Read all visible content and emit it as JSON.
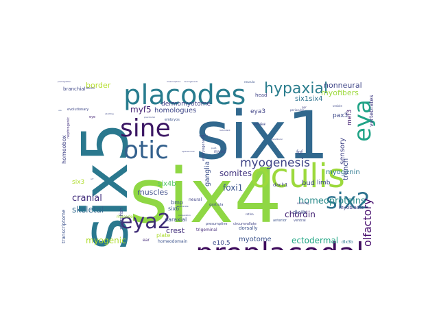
{
  "word_cloud": {
    "words": [
      {
        "text": "six4",
        "weight": 100,
        "color": "#8fd744",
        "rotated": false
      },
      {
        "text": "six1",
        "weight": 85,
        "color": "#31688e",
        "rotated": false
      },
      {
        "text": "six5",
        "weight": 80,
        "color": "#2a788e",
        "rotated": true
      },
      {
        "text": "oculis",
        "weight": 45,
        "color": "#9cd93c",
        "rotated": false
      },
      {
        "text": "preplacodal",
        "weight": 42,
        "color": "#3e0b5c",
        "rotated": false
      },
      {
        "text": "placodes",
        "weight": 40,
        "color": "#287c8e",
        "rotated": false
      },
      {
        "text": "sine",
        "weight": 35,
        "color": "#3c1764",
        "rotated": false
      },
      {
        "text": "otic",
        "weight": 33,
        "color": "#34618d",
        "rotated": false
      },
      {
        "text": "eya",
        "weight": 34,
        "color": "#20a386",
        "rotated": true
      },
      {
        "text": "six2",
        "weight": 30,
        "color": "#2c718e",
        "rotated": false
      },
      {
        "text": "eya2",
        "weight": 28,
        "color": "#3f2d77",
        "rotated": false
      },
      {
        "text": "hypaxial",
        "weight": 22,
        "color": "#2c7e8e",
        "rotated": false
      },
      {
        "text": "myogenesis",
        "weight": 18,
        "color": "#404587",
        "rotated": false
      },
      {
        "text": "olfactory",
        "weight": 16,
        "color": "#44096b",
        "rotated": true
      },
      {
        "text": "homeoproteins",
        "weight": 13,
        "color": "#2a8b8b",
        "rotated": false
      },
      {
        "text": "chordin",
        "weight": 12,
        "color": "#3c1a6e",
        "rotated": false
      },
      {
        "text": "cranial",
        "weight": 13,
        "color": "#3f2a7a",
        "rotated": false
      },
      {
        "text": "somites",
        "weight": 12,
        "color": "#453781",
        "rotated": false
      },
      {
        "text": "skeletal",
        "weight": 12,
        "color": "#30698e",
        "rotated": false
      },
      {
        "text": "myogenic",
        "weight": 12,
        "color": "#b1dd2f",
        "rotated": false
      },
      {
        "text": "ectodermal",
        "weight": 12,
        "color": "#22a785",
        "rotated": false
      },
      {
        "text": "myf5",
        "weight": 12,
        "color": "#482374",
        "rotated": false
      },
      {
        "text": "border",
        "weight": 11,
        "color": "#b5de2b",
        "rotated": false
      },
      {
        "text": "nonneural",
        "weight": 11,
        "color": "#404688",
        "rotated": false
      },
      {
        "text": "myofibers",
        "weight": 11,
        "color": "#9dd93b",
        "rotated": false
      },
      {
        "text": "foxi1",
        "weight": 11,
        "color": "#3a548c",
        "rotated": false
      },
      {
        "text": "crest",
        "weight": 11,
        "color": "#46327e",
        "rotated": false
      },
      {
        "text": "myotome",
        "weight": 10,
        "color": "#3b528b",
        "rotated": false
      },
      {
        "text": "myogenin",
        "weight": 10,
        "color": "#2a778e",
        "rotated": false
      },
      {
        "text": "trench",
        "weight": 10,
        "color": "#3e4a89",
        "rotated": true
      },
      {
        "text": "sensory",
        "weight": 10,
        "color": "#404387",
        "rotated": true
      },
      {
        "text": "ganglia",
        "weight": 10,
        "color": "#3c4f8a",
        "rotated": true
      },
      {
        "text": "six1six4",
        "weight": 10,
        "color": "#2c728e",
        "rotated": false
      },
      {
        "text": "homologues",
        "weight": 10,
        "color": "#3f4788",
        "rotated": false
      },
      {
        "text": "dermomyotome",
        "weight": 9,
        "color": "#424086",
        "rotated": false
      },
      {
        "text": "muscles",
        "weight": 10,
        "color": "#3e4c8a",
        "rotated": false
      },
      {
        "text": "six4b",
        "weight": 10,
        "color": "#56c667",
        "rotated": false
      },
      {
        "text": "eya3",
        "weight": 9,
        "color": "#404387",
        "rotated": false
      },
      {
        "text": "mef3",
        "weight": 9,
        "color": "#482475",
        "rotated": true
      },
      {
        "text": "pax3",
        "weight": 9,
        "color": "#3e4989",
        "rotated": false
      },
      {
        "text": "vertebrates",
        "weight": 8,
        "color": "#433e85",
        "rotated": true
      },
      {
        "text": "bud",
        "weight": 10,
        "color": "#3f4889",
        "rotated": false
      },
      {
        "text": "limb",
        "weight": 9,
        "color": "#3f4a8a",
        "rotated": false
      },
      {
        "text": "e10.5",
        "weight": 9,
        "color": "#3e4c8a",
        "rotated": false
      },
      {
        "text": "six3",
        "weight": 9,
        "color": "#b0dd2f",
        "rotated": false
      },
      {
        "text": "paraxial",
        "weight": 8,
        "color": "#3b528b",
        "rotated": false
      },
      {
        "text": "plate",
        "weight": 8,
        "color": "#addc30",
        "rotated": false
      },
      {
        "text": "homeobox",
        "weight": 8,
        "color": "#414487",
        "rotated": true
      },
      {
        "text": "bmp",
        "weight": 8,
        "color": "#3d4e8a",
        "rotated": false
      },
      {
        "text": "six6",
        "weight": 8,
        "color": "#3a548c",
        "rotated": false
      },
      {
        "text": "dach1",
        "weight": 7,
        "color": "#414487",
        "rotated": false
      },
      {
        "text": "dorsally",
        "weight": 7,
        "color": "#3b518b",
        "rotated": false
      },
      {
        "text": "myoblasts",
        "weight": 7,
        "color": "#424086",
        "rotated": false
      },
      {
        "text": "head",
        "weight": 7,
        "color": "#414487",
        "rotated": false
      },
      {
        "text": "fgf",
        "weight": 7,
        "color": "#3e4989",
        "rotated": false
      },
      {
        "text": "zebrafish",
        "weight": 7,
        "color": "#404387",
        "rotated": true
      },
      {
        "text": "transcriptome",
        "weight": 7,
        "color": "#3b518b",
        "rotated": true
      },
      {
        "text": "branchial",
        "weight": 7,
        "color": "#3f4788",
        "rotated": false
      },
      {
        "text": "dlx4b",
        "weight": 6,
        "color": "#3e4c8a",
        "rotated": false
      },
      {
        "text": "dlx3b",
        "weight": 6,
        "color": "#2a778e",
        "rotated": false
      },
      {
        "text": "trigeminal",
        "weight": 6,
        "color": "#472d7b",
        "rotated": false
      },
      {
        "text": "homeodomain",
        "weight": 6,
        "color": "#3b528b",
        "rotated": false
      },
      {
        "text": "ear",
        "weight": 6,
        "color": "#472d7b",
        "rotated": false
      },
      {
        "text": "mesoderm",
        "weight": 6,
        "color": "#9fda3a",
        "rotated": false
      },
      {
        "text": "neural",
        "weight": 6,
        "color": "#404387",
        "rotated": false
      },
      {
        "text": "myod",
        "weight": 5,
        "color": "#3e4a89",
        "rotated": false
      },
      {
        "text": "nephrogenic",
        "weight": 5,
        "color": "#463480",
        "rotated": true
      },
      {
        "text": "evolutionary",
        "weight": 5,
        "color": "#3f4889",
        "rotated": false
      },
      {
        "text": "eye",
        "weight": 5,
        "color": "#482878",
        "rotated": false
      },
      {
        "text": "embryos",
        "weight": 5,
        "color": "#3b528b",
        "rotated": false
      },
      {
        "text": "embryogenesis",
        "weight": 5,
        "color": "#3e4a89",
        "rotated": true
      },
      {
        "text": "gastrula",
        "weight": 5,
        "color": "#3e4c8a",
        "rotated": false
      },
      {
        "text": "presumptive",
        "weight": 5,
        "color": "#3f4788",
        "rotated": false
      },
      {
        "text": "circumvallate",
        "weight": 5,
        "color": "#404387",
        "rotated": false
      },
      {
        "text": "anterior",
        "weight": 5,
        "color": "#3b528b",
        "rotated": false
      },
      {
        "text": "ventral",
        "weight": 5,
        "color": "#3e4989",
        "rotated": false
      },
      {
        "text": "morphogenesis",
        "weight": 4,
        "color": "#3f4788",
        "rotated": false
      },
      {
        "text": "lateral",
        "weight": 4,
        "color": "#414487",
        "rotated": false
      },
      {
        "text": "periocular",
        "weight": 4,
        "color": "#3e4c8a",
        "rotated": false
      },
      {
        "text": "ppr",
        "weight": 4,
        "color": "#404387",
        "rotated": false
      },
      {
        "text": "vesicle",
        "weight": 4,
        "color": "#3f4889",
        "rotated": false
      },
      {
        "text": "neurula",
        "weight": 4,
        "color": "#3b528b",
        "rotated": false
      },
      {
        "text": "ganglion",
        "weight": 4,
        "color": "#3e4989",
        "rotated": false
      },
      {
        "text": "retina",
        "weight": 4,
        "color": "#3f4788",
        "rotated": false
      },
      {
        "text": "correctly",
        "weight": 4,
        "color": "#414487",
        "rotated": false
      },
      {
        "text": "regenerate",
        "weight": 3,
        "color": "#3e4c8a",
        "rotated": false
      },
      {
        "text": "stages",
        "weight": 3,
        "color": "#3b528b",
        "rotated": false
      },
      {
        "text": "prechordal",
        "weight": 3,
        "color": "#3e4989",
        "rotated": false
      },
      {
        "text": "mesonephros",
        "weight": 3,
        "color": "#404387",
        "rotated": false
      },
      {
        "text": "neurogenesis",
        "weight": 3,
        "color": "#3f4889",
        "rotated": false
      },
      {
        "text": "premigration",
        "weight": 3,
        "color": "#414487",
        "rotated": false
      },
      {
        "text": "arf",
        "weight": 3,
        "color": "#3e4c8a",
        "rotated": false
      },
      {
        "text": "uts",
        "weight": 3,
        "color": "#3b528b",
        "rotated": false
      },
      {
        "text": "abutting",
        "weight": 3,
        "color": "#3e4989",
        "rotated": false
      },
      {
        "text": "cooperation",
        "weight": 2,
        "color": "#3f4788",
        "rotated": false
      },
      {
        "text": "adjacent",
        "weight": 2,
        "color": "#404387",
        "rotated": false
      },
      {
        "text": "epibranchial",
        "weight": 2,
        "color": "#3f4889",
        "rotated": false
      },
      {
        "text": "redundant",
        "weight": 2,
        "color": "#414487",
        "rotated": false
      },
      {
        "text": "tbx1",
        "weight": 2,
        "color": "#3e4c8a",
        "rotated": false
      },
      {
        "text": "pax6",
        "weight": 2,
        "color": "#3b528b",
        "rotated": false
      },
      {
        "text": "mandibular",
        "weight": 2,
        "color": "#3e4989",
        "rotated": false
      }
    ]
  }
}
